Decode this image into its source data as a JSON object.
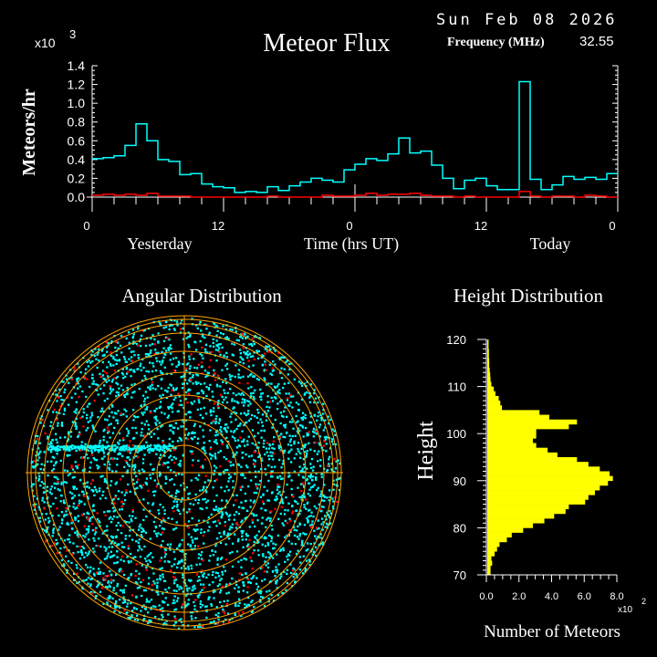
{
  "header": {
    "date": "Sun Feb 08 2026",
    "title": "Meteor Flux",
    "frequency_label": "Frequency (MHz)",
    "frequency_value": "32.55"
  },
  "colors": {
    "background": "#000000",
    "flux_all": "#00ffff",
    "flux_secondary": "#ff0000",
    "height_bars": "#ffff00",
    "polar_grid": "#ffa500",
    "scatter_main": "#00ffff",
    "scatter_secondary": "#ff0000"
  },
  "chart_data": [
    {
      "type": "line",
      "step": true,
      "title": "Meteor Flux",
      "ylabel": "Meteors/hr",
      "yscale_label": "x10",
      "yscale_exponent": "3",
      "xlabel": "Time (hrs UT)",
      "xlabel_left": "Yesterday",
      "xlabel_right": "Today",
      "xlim": [
        0,
        48
      ],
      "ylim": [
        0,
        1.4
      ],
      "x_ticks": [
        "0",
        "12",
        "0",
        "12",
        "0"
      ],
      "y_ticks": [
        "0.0",
        "0.2",
        "0.4",
        "0.6",
        "0.8",
        "1.0",
        "1.2",
        "1.4"
      ],
      "grid": false,
      "series": [
        {
          "color": "#00ffff",
          "values": [
            0.41,
            0.42,
            0.44,
            0.55,
            0.78,
            0.6,
            0.4,
            0.38,
            0.24,
            0.25,
            0.14,
            0.11,
            0.1,
            0.05,
            0.06,
            0.05,
            0.11,
            0.07,
            0.12,
            0.16,
            0.2,
            0.18,
            0.16,
            0.29,
            0.35,
            0.41,
            0.39,
            0.46,
            0.63,
            0.47,
            0.49,
            0.34,
            0.2,
            0.09,
            0.18,
            0.2,
            0.12,
            0.08,
            0.08,
            1.23,
            0.19,
            0.08,
            0.13,
            0.22,
            0.19,
            0.21,
            0.19,
            0.25
          ]
        },
        {
          "color": "#ff0000",
          "values": [
            0.02,
            0.03,
            0.02,
            0.03,
            0.02,
            0.04,
            0.01,
            0.01,
            0.01,
            0.0,
            0.0,
            0.0,
            0.0,
            0.0,
            0.0,
            0.0,
            0.01,
            0.0,
            0.0,
            0.0,
            0.0,
            0.02,
            0.01,
            0.01,
            0.02,
            0.04,
            0.02,
            0.03,
            0.03,
            0.04,
            0.02,
            0.01,
            0.01,
            0.0,
            0.01,
            0.0,
            0.0,
            0.0,
            0.0,
            0.06,
            0.01,
            0.0,
            0.01,
            0.01,
            0.0,
            0.02,
            0.01,
            0.0
          ]
        }
      ]
    },
    {
      "type": "scatter",
      "title": "Angular Distribution",
      "projection": "polar"
    },
    {
      "type": "bar",
      "orientation": "horizontal",
      "title": "Height Distribution",
      "ylabel": "Height",
      "xlabel": "Number of Meteors",
      "xscale_label": "x10",
      "xscale_exponent": "2",
      "ylim": [
        70,
        120
      ],
      "xlim": [
        0,
        8.0
      ],
      "y_ticks": [
        "70",
        "80",
        "90",
        "100",
        "110",
        "120"
      ],
      "x_ticks": [
        "0.0",
        "2.0",
        "4.0",
        "6.0",
        "8.0"
      ],
      "heights": [
        70,
        71,
        72,
        73,
        74,
        75,
        76,
        77,
        78,
        79,
        80,
        81,
        82,
        83,
        84,
        85,
        86,
        87,
        88,
        89,
        90,
        91,
        92,
        93,
        94,
        95,
        96,
        97,
        98,
        99,
        100,
        101,
        102,
        103,
        104,
        105,
        106,
        107,
        108,
        109,
        110,
        111,
        112,
        113,
        114,
        115,
        116,
        117,
        118,
        119
      ],
      "values": [
        0.2,
        0.2,
        0.3,
        0.25,
        0.45,
        0.6,
        0.75,
        1.2,
        1.5,
        2.2,
        2.8,
        3.5,
        4.1,
        4.8,
        5.0,
        6.0,
        6.2,
        6.6,
        6.9,
        7.4,
        7.7,
        7.5,
        6.9,
        6.2,
        5.5,
        4.3,
        3.7,
        3.0,
        2.8,
        3.0,
        3.0,
        5.0,
        5.5,
        3.8,
        3.2,
        0.9,
        0.8,
        0.7,
        0.5,
        0.4,
        0.25,
        0.2,
        0.18,
        0.15,
        0.12,
        0.12,
        0.1,
        0.1,
        0.08,
        0.08
      ]
    }
  ]
}
